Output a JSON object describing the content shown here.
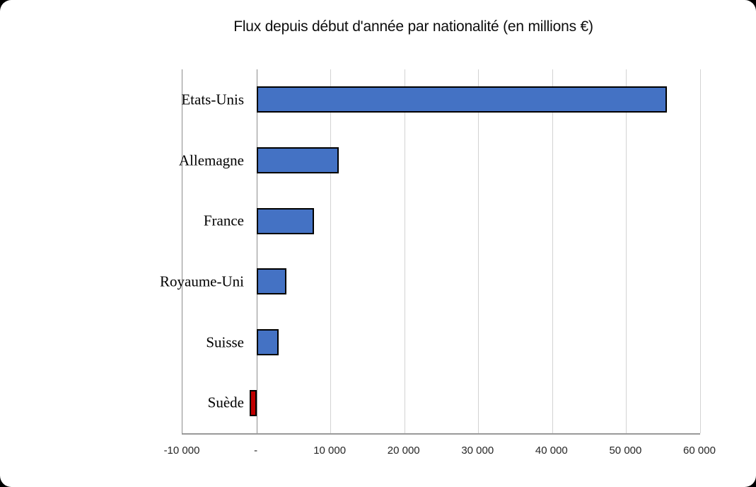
{
  "title": "Flux depuis début d'année par nationalité (en millions €)",
  "colors": {
    "page_background": "#000000",
    "card_background": "#FFFFFF",
    "bar_positive": "#4472C4",
    "bar_negative": "#C00000",
    "bar_border": "#000000",
    "gridline": "#D3D3D3",
    "axis_line": "#8C8C8C",
    "text": "#0D0D0D"
  },
  "chart_data": {
    "type": "bar",
    "orientation": "horizontal",
    "title": "Flux depuis début d'année par nationalité (en millions €)",
    "categories": [
      "Etats-Unis",
      "Allemagne",
      "France",
      "Royaume-Uni",
      "Suisse",
      "Suède"
    ],
    "values": [
      55500,
      11100,
      7800,
      4100,
      3000,
      -900
    ],
    "bar_colors": [
      "#4472C4",
      "#4472C4",
      "#4472C4",
      "#4472C4",
      "#4472C4",
      "#C00000"
    ],
    "xlim": [
      -10000,
      60000
    ],
    "xticks": [
      {
        "value": -10000,
        "label": "-10 000"
      },
      {
        "value": 0,
        "label": "-"
      },
      {
        "value": 10000,
        "label": "10 000"
      },
      {
        "value": 20000,
        "label": "20 000"
      },
      {
        "value": 30000,
        "label": "30 000"
      },
      {
        "value": 40000,
        "label": "40 000"
      },
      {
        "value": 50000,
        "label": "50 000"
      },
      {
        "value": 60000,
        "label": "60 000"
      }
    ],
    "grid": "vertical-gridlines-on",
    "legend": "none",
    "xlabel": "",
    "ylabel": ""
  }
}
